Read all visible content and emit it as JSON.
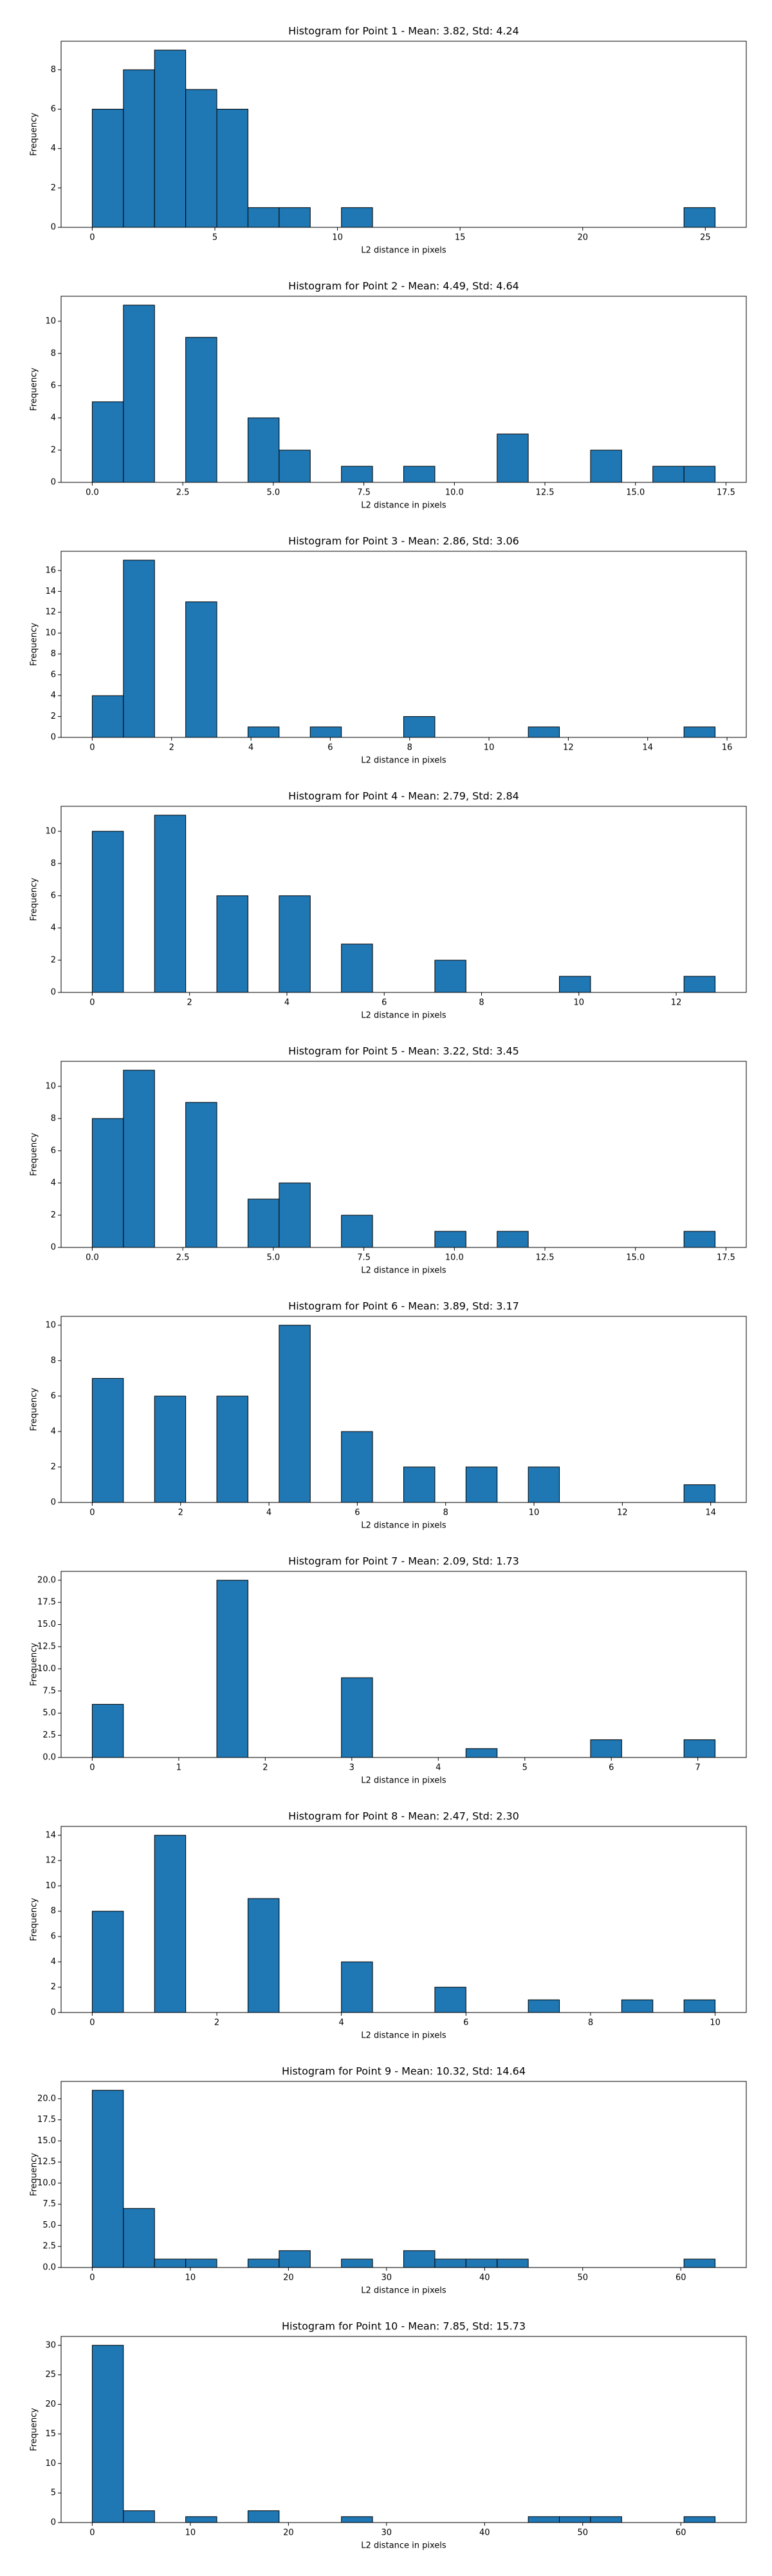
{
  "chart_data": [
    {
      "type": "histogram",
      "title": "Histogram for Point 1 - Mean: 3.82, Std: 4.24",
      "xlabel": "L2 distance in pixels",
      "ylabel": "Frequency",
      "color": "#1f77b4",
      "bins": [
        0,
        1.27,
        2.54,
        3.81,
        5.08,
        6.35,
        7.62,
        8.89,
        10.16,
        11.43,
        12.7,
        13.97,
        15.24,
        16.51,
        17.78,
        19.05,
        20.32,
        21.59,
        22.86,
        24.13,
        25.4
      ],
      "counts": [
        6,
        8,
        9,
        7,
        6,
        1,
        1,
        0,
        1,
        0,
        0,
        0,
        0,
        0,
        0,
        0,
        0,
        0,
        0,
        1
      ],
      "xlim": [
        -1.27,
        26.67
      ],
      "ylim": [
        0,
        9.45
      ],
      "xticks": [
        0,
        5,
        10,
        15,
        20,
        25
      ],
      "yticks": [
        0,
        2,
        4,
        6,
        8
      ]
    },
    {
      "type": "histogram",
      "title": "Histogram for Point 2 - Mean: 4.49, Std: 4.64",
      "xlabel": "L2 distance in pixels",
      "ylabel": "Frequency",
      "color": "#1f77b4",
      "bins": [
        0,
        0.86,
        1.72,
        2.58,
        3.44,
        4.3,
        5.16,
        6.02,
        6.88,
        7.74,
        8.6,
        9.46,
        10.32,
        11.18,
        12.04,
        12.9,
        13.76,
        14.62,
        15.48,
        16.34,
        17.2
      ],
      "counts": [
        5,
        11,
        0,
        9,
        0,
        4,
        2,
        0,
        1,
        0,
        1,
        0,
        0,
        3,
        0,
        0,
        2,
        0,
        1,
        1
      ],
      "xlim": [
        -0.86,
        18.06
      ],
      "ylim": [
        0,
        11.55
      ],
      "xticks": [
        {
          "value": 0,
          "label": "0.0"
        },
        2.5,
        {
          "value": 5,
          "label": "5.0"
        },
        7.5,
        {
          "value": 10,
          "label": "10.0"
        },
        12.5,
        {
          "value": 15,
          "label": "15.0"
        },
        17.5
      ],
      "yticks": [
        0,
        2,
        4,
        6,
        8,
        10
      ]
    },
    {
      "type": "histogram",
      "title": "Histogram for Point 3 - Mean: 2.86, Std: 3.06",
      "xlabel": "L2 distance in pixels",
      "ylabel": "Frequency",
      "color": "#1f77b4",
      "bins": [
        0,
        0.785,
        1.57,
        2.355,
        3.14,
        3.925,
        4.71,
        5.495,
        6.28,
        7.065,
        7.85,
        8.635,
        9.42,
        10.205,
        10.99,
        11.775,
        12.56,
        13.345,
        14.13,
        14.915,
        15.7
      ],
      "counts": [
        4,
        17,
        0,
        13,
        0,
        1,
        0,
        1,
        0,
        0,
        2,
        0,
        0,
        0,
        1,
        0,
        0,
        0,
        0,
        1
      ],
      "xlim": [
        -0.785,
        16.485
      ],
      "ylim": [
        0,
        17.85
      ],
      "xticks": [
        0,
        2,
        4,
        6,
        8,
        10,
        12,
        14,
        16
      ],
      "yticks": [
        0,
        2,
        4,
        6,
        8,
        10,
        12,
        14,
        16
      ]
    },
    {
      "type": "histogram",
      "title": "Histogram for Point 4 - Mean: 2.79, Std: 2.84",
      "xlabel": "L2 distance in pixels",
      "ylabel": "Frequency",
      "color": "#1f77b4",
      "bins": [
        0,
        0.64,
        1.28,
        1.92,
        2.56,
        3.2,
        3.84,
        4.48,
        5.12,
        5.76,
        6.4,
        7.04,
        7.68,
        8.32,
        8.96,
        9.6,
        10.24,
        10.88,
        11.52,
        12.16,
        12.8
      ],
      "counts": [
        10,
        0,
        11,
        0,
        6,
        0,
        6,
        0,
        3,
        0,
        0,
        2,
        0,
        0,
        0,
        1,
        0,
        0,
        0,
        1
      ],
      "xlim": [
        -0.64,
        13.44
      ],
      "ylim": [
        0,
        11.55
      ],
      "xticks": [
        0,
        2,
        4,
        6,
        8,
        10,
        12
      ],
      "yticks": [
        0,
        2,
        4,
        6,
        8,
        10
      ]
    },
    {
      "type": "histogram",
      "title": "Histogram for Point 5 - Mean: 3.22, Std: 3.45",
      "xlabel": "L2 distance in pixels",
      "ylabel": "Frequency",
      "color": "#1f77b4",
      "bins": [
        0,
        0.86,
        1.72,
        2.58,
        3.44,
        4.3,
        5.16,
        6.02,
        6.88,
        7.74,
        8.6,
        9.46,
        10.32,
        11.18,
        12.04,
        12.9,
        13.76,
        14.62,
        15.48,
        16.34,
        17.2
      ],
      "counts": [
        8,
        11,
        0,
        9,
        0,
        3,
        4,
        0,
        2,
        0,
        0,
        1,
        0,
        1,
        0,
        0,
        0,
        0,
        0,
        1
      ],
      "xlim": [
        -0.86,
        18.06
      ],
      "ylim": [
        0,
        11.55
      ],
      "xticks": [
        {
          "value": 0,
          "label": "0.0"
        },
        2.5,
        {
          "value": 5,
          "label": "5.0"
        },
        7.5,
        {
          "value": 10,
          "label": "10.0"
        },
        12.5,
        {
          "value": 15,
          "label": "15.0"
        },
        17.5
      ],
      "yticks": [
        0,
        2,
        4,
        6,
        8,
        10
      ]
    },
    {
      "type": "histogram",
      "title": "Histogram for Point 6 - Mean: 3.89, Std: 3.17",
      "xlabel": "L2 distance in pixels",
      "ylabel": "Frequency",
      "color": "#1f77b4",
      "bins": [
        0,
        0.705,
        1.41,
        2.115,
        2.82,
        3.525,
        4.23,
        4.935,
        5.64,
        6.345,
        7.05,
        7.755,
        8.46,
        9.165,
        9.87,
        10.575,
        11.28,
        11.985,
        12.69,
        13.395,
        14.1
      ],
      "counts": [
        7,
        0,
        6,
        0,
        6,
        0,
        10,
        0,
        4,
        0,
        2,
        0,
        2,
        0,
        2,
        0,
        0,
        0,
        0,
        1
      ],
      "xlim": [
        -0.705,
        14.805
      ],
      "ylim": [
        0,
        10.5
      ],
      "xticks": [
        0,
        2,
        4,
        6,
        8,
        10,
        12,
        14
      ],
      "yticks": [
        0,
        2,
        4,
        6,
        8,
        10
      ]
    },
    {
      "type": "histogram",
      "title": "Histogram for Point 7 - Mean: 2.09, Std: 1.73",
      "xlabel": "L2 distance in pixels",
      "ylabel": "Frequency",
      "color": "#1f77b4",
      "bins": [
        0,
        0.36,
        0.72,
        1.08,
        1.44,
        1.8,
        2.16,
        2.52,
        2.88,
        3.24,
        3.6,
        3.96,
        4.32,
        4.68,
        5.04,
        5.4,
        5.76,
        6.12,
        6.48,
        6.84,
        7.2
      ],
      "counts": [
        6,
        0,
        0,
        0,
        20,
        0,
        0,
        0,
        9,
        0,
        0,
        0,
        1,
        0,
        0,
        0,
        2,
        0,
        0,
        2
      ],
      "xlim": [
        -0.36,
        7.56
      ],
      "ylim": [
        0,
        21
      ],
      "xticks": [
        0,
        1,
        2,
        3,
        4,
        5,
        6,
        7
      ],
      "yticks": [
        {
          "value": 0,
          "label": "0.0"
        },
        2.5,
        {
          "value": 5,
          "label": "5.0"
        },
        7.5,
        {
          "value": 10,
          "label": "10.0"
        },
        12.5,
        {
          "value": 15,
          "label": "15.0"
        },
        17.5,
        {
          "value": 20,
          "label": "20.0"
        }
      ]
    },
    {
      "type": "histogram",
      "title": "Histogram for Point 8 - Mean: 2.47, Std: 2.30",
      "xlabel": "L2 distance in pixels",
      "ylabel": "Frequency",
      "color": "#1f77b4",
      "bins": [
        0,
        0.5,
        1,
        1.5,
        2,
        2.5,
        3,
        3.5,
        4,
        4.5,
        5,
        5.5,
        6,
        6.5,
        7,
        7.5,
        8,
        8.5,
        9,
        9.5,
        10
      ],
      "counts": [
        8,
        0,
        14,
        0,
        0,
        9,
        0,
        0,
        4,
        0,
        0,
        2,
        0,
        0,
        1,
        0,
        0,
        1,
        0,
        1
      ],
      "xlim": [
        -0.5,
        10.5
      ],
      "ylim": [
        0,
        14.7
      ],
      "xticks": [
        0,
        2,
        4,
        6,
        8,
        10
      ],
      "yticks": [
        0,
        2,
        4,
        6,
        8,
        10,
        12,
        14
      ]
    },
    {
      "type": "histogram",
      "title": "Histogram for Point 9 - Mean: 10.32, Std: 14.64",
      "xlabel": "L2 distance in pixels",
      "ylabel": "Frequency",
      "color": "#1f77b4",
      "bins": [
        0,
        3.175,
        6.35,
        9.525,
        12.7,
        15.875,
        19.05,
        22.225,
        25.4,
        28.575,
        31.75,
        34.925,
        38.1,
        41.275,
        44.45,
        47.625,
        50.8,
        53.975,
        57.15,
        60.325,
        63.5
      ],
      "counts": [
        21,
        7,
        1,
        1,
        0,
        1,
        2,
        0,
        1,
        0,
        2,
        1,
        1,
        1,
        0,
        0,
        0,
        0,
        0,
        1
      ],
      "xlim": [
        -3.175,
        66.675
      ],
      "ylim": [
        0,
        22.05
      ],
      "xticks": [
        0,
        10,
        20,
        30,
        40,
        50,
        60
      ],
      "yticks": [
        {
          "value": 0,
          "label": "0.0"
        },
        2.5,
        {
          "value": 5,
          "label": "5.0"
        },
        7.5,
        {
          "value": 10,
          "label": "10.0"
        },
        12.5,
        {
          "value": 15,
          "label": "15.0"
        },
        17.5,
        {
          "value": 20,
          "label": "20.0"
        }
      ]
    },
    {
      "type": "histogram",
      "title": "Histogram for Point 10 - Mean: 7.85, Std: 15.73",
      "xlabel": "L2 distance in pixels",
      "ylabel": "Frequency",
      "color": "#1f77b4",
      "bins": [
        0,
        3.175,
        6.35,
        9.525,
        12.7,
        15.875,
        19.05,
        22.225,
        25.4,
        28.575,
        31.75,
        34.925,
        38.1,
        41.275,
        44.45,
        47.625,
        50.8,
        53.975,
        57.15,
        60.325,
        63.5
      ],
      "counts": [
        30,
        2,
        0,
        1,
        0,
        2,
        0,
        0,
        1,
        0,
        0,
        0,
        0,
        0,
        1,
        1,
        1,
        0,
        0,
        1
      ],
      "xlim": [
        -3.175,
        66.675
      ],
      "ylim": [
        0,
        31.5
      ],
      "xticks": [
        0,
        10,
        20,
        30,
        40,
        50,
        60
      ],
      "yticks": [
        0,
        5,
        10,
        15,
        20,
        25,
        30
      ]
    }
  ]
}
